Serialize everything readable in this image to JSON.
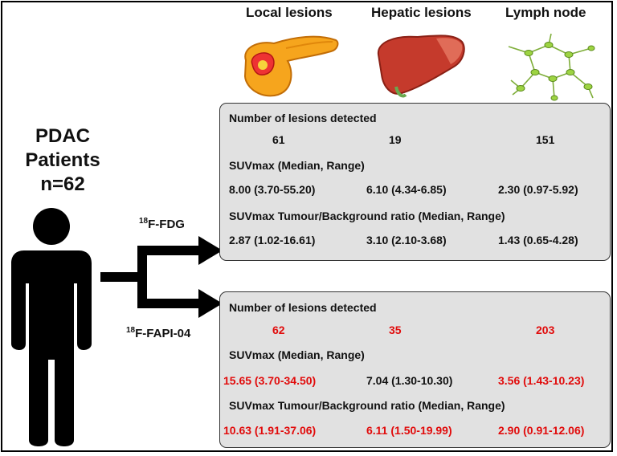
{
  "columns": [
    "Local lesions",
    "Hepatic lesions",
    "Lymph node"
  ],
  "patients": {
    "line1": "PDAC",
    "line2": "Patients",
    "line3": "n=62"
  },
  "tracers": {
    "fdg": {
      "sup": "18",
      "name": "F-FDG"
    },
    "fapi": {
      "sup": "18",
      "name": "F-FAPI-04"
    }
  },
  "fdg_panel": {
    "lesions_label": "Number of lesions detected",
    "lesions": [
      "61",
      "19",
      "151"
    ],
    "suvmax_label": "SUVmax (Median, Range)",
    "suvmax": [
      "8.00 (3.70-55.20)",
      "6.10 (4.34-6.85)",
      "2.30 (0.97-5.92)"
    ],
    "ratio_label": "SUVmax Tumour/Background ratio (Median, Range)",
    "ratio": [
      "2.87 (1.02-16.61)",
      "3.10 (2.10-3.68)",
      "1.43 (0.65-4.28)"
    ]
  },
  "fapi_panel": {
    "lesions_label": "Number of lesions detected",
    "lesions": [
      "62",
      "35",
      "203"
    ],
    "suvmax_label": "SUVmax (Median, Range)",
    "suvmax": [
      "15.65 (3.70-34.50)",
      "7.04 (1.30-10.30)",
      "3.56 (1.43-10.23)"
    ],
    "ratio_label": "SUVmax Tumour/Background ratio (Median, Range)",
    "ratio": [
      "10.63 (1.91-37.06)",
      "6.11 (1.50-19.99)",
      "2.90 (0.91-12.06)"
    ],
    "highlight_color": "#e10b0b",
    "highlighted": {
      "lesions": [
        true,
        true,
        true
      ],
      "suvmax": [
        true,
        false,
        true
      ],
      "ratio": [
        true,
        true,
        true
      ]
    }
  },
  "icons": [
    "pancreas-icon",
    "liver-icon",
    "lymph-node-icon",
    "person-icon",
    "arrow-icon"
  ]
}
